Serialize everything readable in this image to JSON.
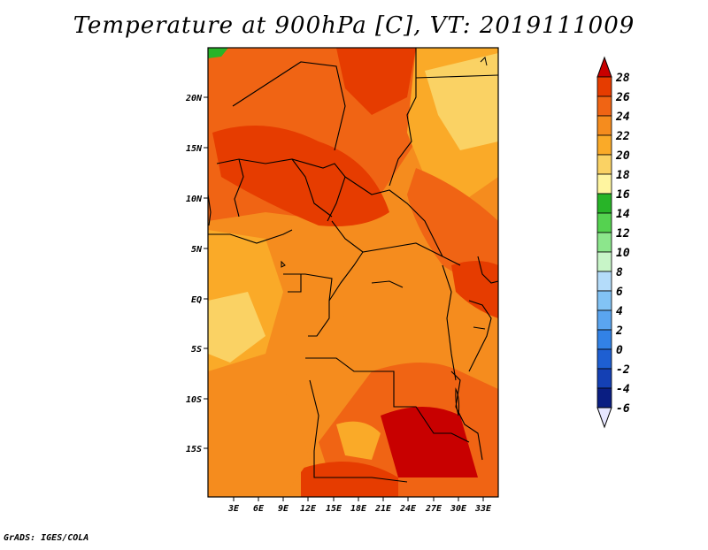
{
  "title": "Temperature at 900hPa [C], VT: 2019111009",
  "footer": "GrADS: IGES/COLA",
  "map": {
    "lat_labels": [
      "20N",
      "15N",
      "10N",
      "5N",
      "EQ",
      "5S",
      "10S",
      "15S"
    ],
    "lon_labels": [
      "3E",
      "6E",
      "9E",
      "12E",
      "15E",
      "18E",
      "21E",
      "24E",
      "27E",
      "30E",
      "33E"
    ]
  },
  "colorbar": {
    "levels": [
      "28",
      "26",
      "24",
      "22",
      "20",
      "18",
      "16",
      "14",
      "12",
      "10",
      "8",
      "6",
      "4",
      "2",
      "0",
      "-2",
      "-4",
      "-6"
    ],
    "colors": [
      "#c80000",
      "#e63c00",
      "#f06414",
      "#f58c1e",
      "#faaa28",
      "#fad264",
      "#fff5a0",
      "#28b428",
      "#55d250",
      "#8ce68c",
      "#c8f5c8",
      "#b4dcfa",
      "#82c3f5",
      "#5aa5f0",
      "#3282e6",
      "#1e5fd2",
      "#1440b4",
      "#0a1e82",
      "#e6e6ff"
    ]
  }
}
